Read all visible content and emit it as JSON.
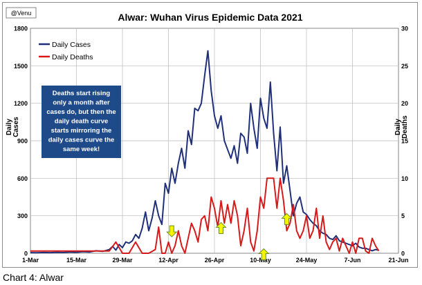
{
  "caption": "Chart 4: Alwar",
  "chart_data": {
    "type": "line",
    "title": "Alwar: Wuhan Virus Epidemic Data 2021",
    "watermark": "@Venu",
    "ylabel_left": [
      "Daily",
      "Cases"
    ],
    "ylabel_right": [
      "Daily",
      "Deaths"
    ],
    "y_left_range": [
      0,
      1800
    ],
    "y_left_ticks": [
      "0",
      "300",
      "600",
      "900",
      "1200",
      "1500",
      "1800"
    ],
    "y_right_range": [
      0,
      30
    ],
    "y_right_ticks": [
      "0",
      "5",
      "10",
      "15",
      "20",
      "25",
      "30"
    ],
    "x_ticks": [
      "1-Mar",
      "15-Mar",
      "29-Mar",
      "12-Apr",
      "26-Apr",
      "10-May",
      "24-May",
      "7-Jun",
      "21-Jun"
    ],
    "x_range_days": [
      0,
      112
    ],
    "grid": true,
    "legend_position": "top-left",
    "colors": {
      "cases": "#1f2f7a",
      "deaths": "#d61a1a",
      "arrow_fill": "#f5f500",
      "arrow_stroke": "#6a8c2a",
      "annotation_bg": "#1f4a8a"
    },
    "annotation": [
      "Deaths start rising",
      "only a month after",
      "cases do, but then the",
      "daily death curve",
      "starts mirroring the",
      "daily cases curve the",
      "same week!"
    ],
    "arrows": [
      {
        "x": 43,
        "y": 2.2,
        "dir": "down"
      },
      {
        "x": 58,
        "y": 4.1,
        "dir": "up"
      },
      {
        "x": 71,
        "y": 0.6,
        "dir": "up"
      },
      {
        "x": 78,
        "y": 5.3,
        "dir": "up"
      }
    ],
    "series": [
      {
        "name": "Daily Cases",
        "axis": "left",
        "x": [
          0,
          2,
          4,
          6,
          8,
          10,
          12,
          14,
          16,
          18,
          20,
          22,
          24,
          25,
          26,
          27,
          28,
          29,
          30,
          31,
          32,
          33,
          34,
          35,
          36,
          37,
          38,
          39,
          40,
          41,
          42,
          43,
          44,
          45,
          46,
          47,
          48,
          49,
          50,
          51,
          52,
          53,
          54,
          55,
          56,
          57,
          58,
          59,
          60,
          61,
          62,
          63,
          64,
          65,
          66,
          67,
          68,
          69,
          70,
          71,
          72,
          73,
          74,
          75,
          76,
          77,
          78,
          79,
          80,
          81,
          82,
          83,
          84,
          85,
          86,
          87,
          88,
          89,
          90,
          91,
          92,
          93,
          94,
          95,
          96,
          97,
          98,
          99,
          100,
          101,
          102,
          103,
          104,
          105,
          106
        ],
        "values": [
          5,
          4,
          6,
          5,
          8,
          6,
          10,
          8,
          12,
          10,
          20,
          15,
          30,
          55,
          25,
          70,
          45,
          90,
          80,
          100,
          150,
          120,
          200,
          330,
          180,
          280,
          420,
          300,
          230,
          560,
          480,
          680,
          560,
          720,
          840,
          680,
          980,
          870,
          1160,
          1140,
          1200,
          1420,
          1620,
          1300,
          1100,
          1000,
          1100,
          900,
          830,
          760,
          860,
          720,
          960,
          930,
          800,
          1200,
          1000,
          840,
          1240,
          1080,
          1000,
          1370,
          960,
          660,
          1010,
          560,
          700,
          500,
          300,
          400,
          450,
          330,
          310,
          270,
          240,
          220,
          180,
          160,
          150,
          120,
          110,
          140,
          100,
          90,
          80,
          70,
          60,
          80,
          50,
          40,
          40,
          30,
          20,
          30,
          25
        ]
      },
      {
        "name": "Daily Deaths",
        "axis": "right",
        "x": [
          0,
          2,
          4,
          6,
          8,
          10,
          12,
          14,
          16,
          18,
          20,
          22,
          24,
          26,
          28,
          30,
          32,
          34,
          36,
          38,
          39,
          40,
          41,
          42,
          43,
          44,
          45,
          46,
          47,
          48,
          49,
          50,
          51,
          52,
          53,
          54,
          55,
          56,
          57,
          58,
          59,
          60,
          61,
          62,
          63,
          64,
          65,
          66,
          67,
          68,
          69,
          70,
          71,
          72,
          73,
          74,
          75,
          76,
          77,
          78,
          79,
          80,
          81,
          82,
          83,
          84,
          85,
          86,
          87,
          88,
          89,
          90,
          91,
          92,
          93,
          94,
          95,
          96,
          97,
          98,
          99,
          100,
          101,
          102,
          103,
          104,
          105,
          106
        ],
        "values": [
          0.3,
          0.3,
          0.3,
          0.3,
          0.3,
          0.3,
          0.3,
          0.3,
          0.3,
          0.3,
          0.3,
          0.3,
          0.3,
          1.5,
          0,
          0,
          1.5,
          0,
          0,
          0.5,
          3.5,
          0,
          0,
          1.5,
          0,
          1,
          3,
          1,
          0,
          2,
          4,
          3,
          1.5,
          4.5,
          5,
          3,
          7.5,
          6,
          3.5,
          7,
          4,
          6.5,
          4,
          7,
          5,
          1,
          3,
          6,
          1.5,
          0.3,
          3,
          7.5,
          6,
          10,
          10,
          10,
          6,
          10,
          7,
          3,
          4,
          6.5,
          3,
          2,
          3,
          5,
          2,
          3,
          6,
          2,
          5,
          1.5,
          0.5,
          1.5,
          2,
          0.3,
          2,
          1,
          0,
          1.5,
          0,
          2,
          2,
          0.3,
          0,
          2,
          1,
          0.3
        ]
      }
    ]
  }
}
